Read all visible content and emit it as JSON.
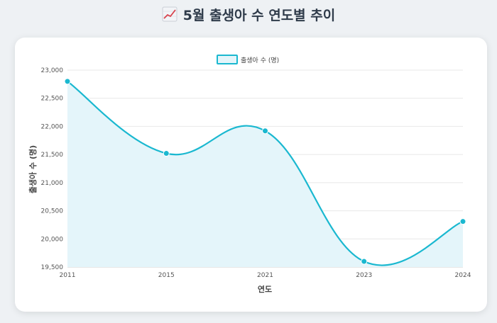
{
  "page": {
    "title": "5월 출생아 수 연도별 추이",
    "title_icon": "chart-increasing-icon"
  },
  "colors": {
    "line": "#1ab8d0",
    "fill": "#e4f5fa",
    "grid": "#e8e8e8",
    "background": "#eef1f4",
    "card": "#ffffff"
  },
  "chart_data": {
    "type": "line",
    "categories": [
      "2011",
      "2015",
      "2021",
      "2023",
      "2024"
    ],
    "series": [
      {
        "name": "출생아 수 (명)",
        "values": [
          22800,
          21520,
          21920,
          19600,
          20310
        ]
      }
    ],
    "xlabel": "연도",
    "ylabel": "출생아 수 (명)",
    "ylim": [
      19500,
      23000
    ],
    "yticks": [
      "23,000",
      "22,500",
      "22,000",
      "21,500",
      "21,000",
      "20,500",
      "20,000",
      "19,500"
    ],
    "grid": true,
    "legend": "top-center",
    "smooth": true,
    "filled": true
  }
}
